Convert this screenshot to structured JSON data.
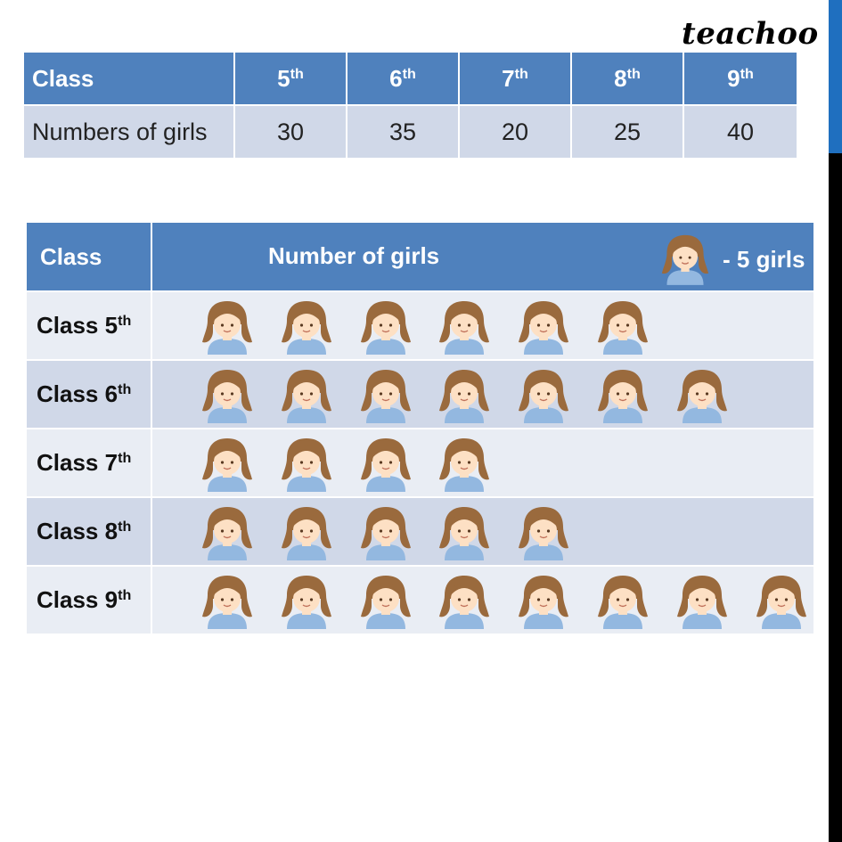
{
  "brand": "teachoo",
  "data_table": {
    "header_label": "Class",
    "row_label": "Numbers of girls",
    "classes": [
      {
        "num": "5",
        "suffix": "th",
        "girls": "30"
      },
      {
        "num": "6",
        "suffix": "th",
        "girls": "35"
      },
      {
        "num": "7",
        "suffix": "th",
        "girls": "20"
      },
      {
        "num": "8",
        "suffix": "th",
        "girls": "25"
      },
      {
        "num": "9",
        "suffix": "th",
        "girls": "40"
      }
    ]
  },
  "pictograph": {
    "header_class": "Class",
    "header_count": "Number of girls",
    "key_text": "- 5 girls",
    "row_prefix": "Class"
  },
  "icon": "girl-icon",
  "colors": {
    "header_blue": "#4f81bd",
    "row_dark": "#d0d8e8",
    "row_light": "#e9edf4",
    "hair": "#9a6a3d",
    "skin": "#fde0c4",
    "shirt": "#93b8e0"
  },
  "chart_data": {
    "type": "pictograph",
    "categories": [
      "Class 5th",
      "Class 6th",
      "Class 7th",
      "Class 8th",
      "Class 9th"
    ],
    "values": [
      30,
      35,
      20,
      25,
      40
    ],
    "icon_value": 5,
    "icon_counts": [
      6,
      7,
      4,
      5,
      8
    ],
    "xlabel": "Number of girls",
    "ylabel": "Class"
  }
}
